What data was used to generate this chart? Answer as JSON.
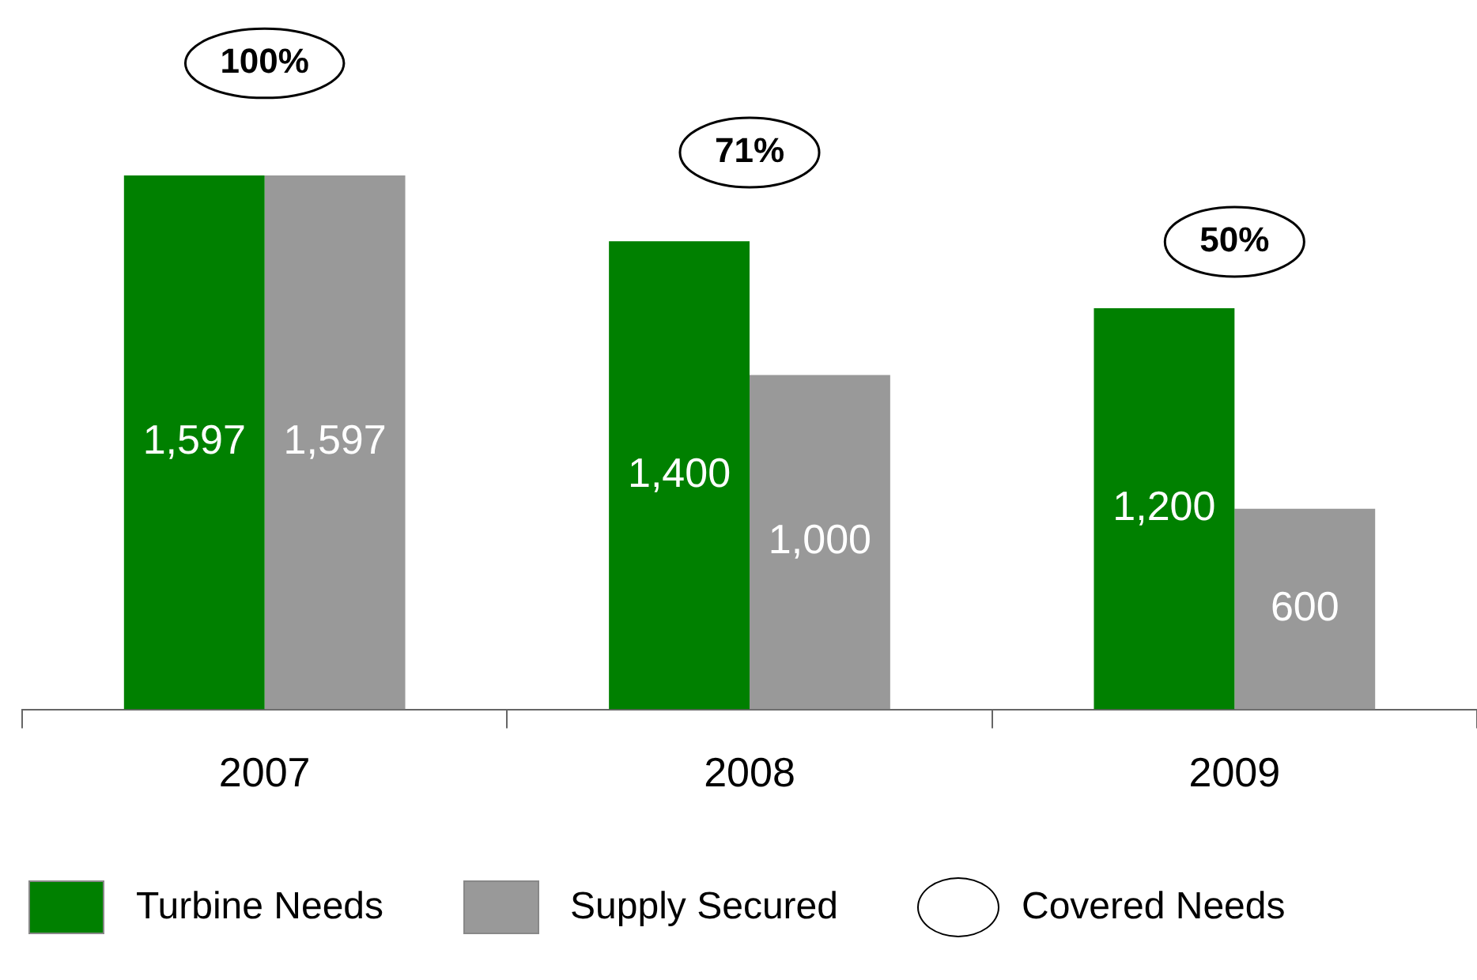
{
  "chart_data": {
    "type": "bar",
    "categories": [
      "2007",
      "2008",
      "2009"
    ],
    "series": [
      {
        "name": "Turbine Needs",
        "color": "#008000",
        "values": [
          1597,
          1400,
          1200
        ],
        "value_labels": [
          "1,597",
          "1,400",
          "1,200"
        ]
      },
      {
        "name": "Supply Secured",
        "color": "#999999",
        "values": [
          1597,
          1000,
          600
        ],
        "value_labels": [
          "1,597",
          "1,000",
          "600"
        ]
      }
    ],
    "tick_labels": "x",
    "legend": "bottom",
    "annotations": [
      "100%",
      "71%",
      "50%",
      "Covered Needs"
    ]
  }
}
